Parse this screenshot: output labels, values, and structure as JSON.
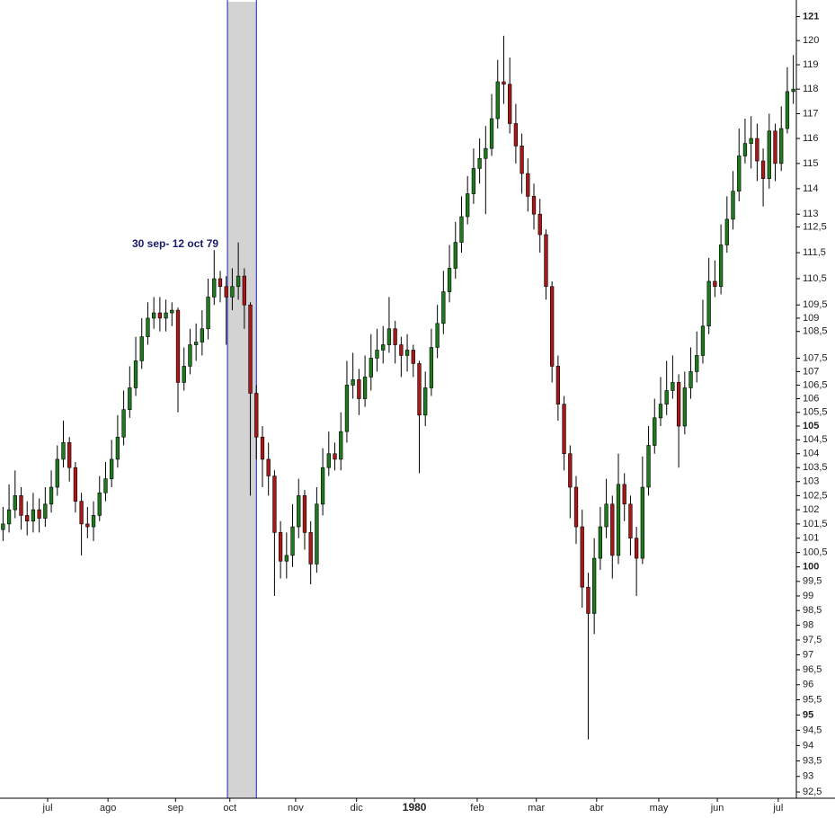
{
  "chart_data": {
    "type": "candlestick",
    "log_scale": true,
    "up_color": "#1f7a1f",
    "down_color": "#a81818",
    "wick_color": "#000000",
    "highlight": {
      "from": 37.2,
      "to": 42.0,
      "label": "30 sep- 12 oct 79",
      "fill": "#d3d3d3",
      "edge_color": "#1f1fb0",
      "label_color": "#1a1a6e"
    },
    "xlim": [
      -0.5,
      131.5
    ],
    "xticks": [
      {
        "value": 7.4,
        "label": "jul"
      },
      {
        "value": 17.4,
        "label": "ago"
      },
      {
        "value": 28.6,
        "label": "sep"
      },
      {
        "value": 37.6,
        "label": "oct"
      },
      {
        "value": 48.5,
        "label": "nov"
      },
      {
        "value": 58.6,
        "label": "dic"
      },
      {
        "value": 68.2,
        "label": "1980"
      },
      {
        "value": 78.6,
        "label": "feb"
      },
      {
        "value": 88.4,
        "label": "mar"
      },
      {
        "value": 98.4,
        "label": "abr"
      },
      {
        "value": 108.7,
        "label": "may"
      },
      {
        "value": 118.4,
        "label": "jun"
      },
      {
        "value": 128.5,
        "label": "jul"
      }
    ],
    "bold_xticks": [
      68.2
    ],
    "ylim": [
      92.3,
      121.7
    ],
    "yticks": [
      121,
      120,
      119,
      118,
      117,
      116,
      115,
      114,
      113,
      {
        "value": 112.5,
        "label": "112,5"
      },
      {
        "value": 111.5,
        "label": "111,5"
      },
      {
        "value": 110.5,
        "label": "110,5"
      },
      {
        "value": 109.5,
        "label": "109,5"
      },
      109,
      {
        "value": 108.5,
        "label": "108,5"
      },
      {
        "value": 107.5,
        "label": "107,5"
      },
      107,
      {
        "value": 106.5,
        "label": "106,5"
      },
      106,
      {
        "value": 105.5,
        "label": "105,5"
      },
      105,
      {
        "value": 104.5,
        "label": "104,5"
      },
      104,
      {
        "value": 103.5,
        "label": "103,5"
      },
      103,
      {
        "value": 102.5,
        "label": "102,5"
      },
      102,
      {
        "value": 101.5,
        "label": "101,5"
      },
      101,
      {
        "value": 100.5,
        "label": "100,5"
      },
      100,
      {
        "value": 99.5,
        "label": "99,5"
      },
      99,
      {
        "value": 98.5,
        "label": "98,5"
      },
      98,
      {
        "value": 97.5,
        "label": "97,5"
      },
      97,
      {
        "value": 96.5,
        "label": "96,5"
      },
      96,
      {
        "value": 95.5,
        "label": "95,5"
      },
      95,
      {
        "value": 94.5,
        "label": "94,5"
      },
      94,
      {
        "value": 93.5,
        "label": "93,5"
      },
      93,
      {
        "value": 92.5,
        "label": "92,5"
      }
    ],
    "bold_yticks": [
      121,
      105,
      100,
      95
    ],
    "open": [
      101.3,
      101.5,
      102,
      102.5,
      101.8,
      101.6,
      102,
      101.7,
      102.2,
      102.8,
      103.8,
      104.4,
      103.5,
      102.3,
      101.5,
      101.4,
      101.8,
      102.6,
      103.1,
      103.8,
      104.6,
      105.6,
      106.4,
      107.4,
      108.3,
      109,
      109.2,
      109,
      109.2,
      109.3,
      106.6,
      107.2,
      108,
      108.1,
      108.6,
      109.8,
      110.5,
      110.2,
      109.8,
      110.2,
      110.6,
      109.5,
      106.2,
      104.6,
      103.8,
      103.2,
      101.2,
      100.2,
      100.4,
      101.4,
      102.5,
      101.2,
      100.1,
      102.2,
      103.5,
      104,
      103.8,
      104.8,
      106.5,
      106.7,
      106,
      106.8,
      107.5,
      107.8,
      108,
      108.6,
      108,
      107.6,
      107.8,
      107.3,
      105.4,
      106.4,
      107.9,
      108.8,
      110,
      110.9,
      111.9,
      112.9,
      113.8,
      114.8,
      115.2,
      115.6,
      116.8,
      118.3,
      118.2,
      116.6,
      115.7,
      114.6,
      113.7,
      113,
      112.2,
      110.2,
      107.2,
      105.8,
      104,
      102.8,
      101.4,
      99.3,
      98.4,
      100.3,
      101.4,
      102.2,
      100.4,
      102.9,
      102.2,
      101,
      100.3,
      102.8,
      104.3,
      105.3,
      105.8,
      106.3,
      106.6,
      105,
      106.4,
      107,
      107.6,
      108.7,
      110.4,
      110.2,
      111.8,
      112.8,
      113.9,
      115.3,
      115.8,
      116,
      115.1,
      114.4,
      116.3,
      115,
      116.4,
      117.9
    ],
    "high": [
      102.1,
      102.9,
      103.4,
      102.8,
      102.3,
      102.6,
      102.4,
      102.8,
      103.4,
      104.3,
      105.2,
      104.6,
      103.7,
      102.6,
      102.1,
      102.3,
      103.2,
      103.7,
      104.5,
      105.4,
      106.3,
      107.2,
      108.3,
      109,
      109.6,
      109.8,
      109.8,
      109.7,
      109.6,
      109.4,
      107.9,
      108.6,
      108.8,
      109.3,
      110.5,
      111.6,
      110.8,
      110.6,
      110.9,
      111.9,
      110.9,
      109.6,
      106.5,
      105,
      104.4,
      103.4,
      101.6,
      101.2,
      102.2,
      103.1,
      102.7,
      101.6,
      102.8,
      104.2,
      104.8,
      104.4,
      105.5,
      107.4,
      107.7,
      107.1,
      107.6,
      108.4,
      108.6,
      108.7,
      109.8,
      108.9,
      108.3,
      108.4,
      108,
      107.4,
      107,
      108.6,
      109.5,
      110.8,
      111.8,
      112.7,
      113.7,
      114.5,
      115.6,
      116,
      116.5,
      117.8,
      119.2,
      120.2,
      119.3,
      117.4,
      116.2,
      115.2,
      114.2,
      113.6,
      112.4,
      110.4,
      107.6,
      106.1,
      104.3,
      103.2,
      102,
      99.8,
      101,
      102.1,
      103.1,
      102.5,
      104,
      103.3,
      102.5,
      101.4,
      103.9,
      105,
      106,
      106.8,
      107.4,
      107.6,
      106.9,
      107,
      107.9,
      108.5,
      109.7,
      111.3,
      111.2,
      112.6,
      113.7,
      114.7,
      116.4,
      116.8,
      116.9,
      116.6,
      115.6,
      117,
      116.6,
      117.3,
      118.9,
      119.4
    ],
    "low": [
      100.9,
      101.2,
      101.7,
      101.3,
      101.1,
      101.2,
      101.2,
      101.4,
      101.9,
      102.5,
      103.5,
      103,
      101.9,
      100.4,
      101,
      100.9,
      101.6,
      102.3,
      102.8,
      103.5,
      104.3,
      105.3,
      106.1,
      107.1,
      108,
      108.6,
      108.5,
      108.5,
      108.7,
      105.5,
      106.3,
      106.9,
      107.4,
      107.6,
      108.2,
      109.5,
      109.6,
      108,
      109.3,
      109.7,
      108.6,
      102.5,
      103.8,
      102.8,
      102.5,
      99,
      99.6,
      99.6,
      100,
      101,
      100.6,
      99.4,
      99.8,
      101.8,
      103.2,
      103.4,
      103.4,
      104.4,
      106,
      105.4,
      105.7,
      106.3,
      107,
      107.3,
      107.7,
      107.3,
      106.8,
      107,
      106.8,
      103.3,
      105,
      106.1,
      107.5,
      108.4,
      109.6,
      110.5,
      111.5,
      112.6,
      113.4,
      114.2,
      113,
      115.3,
      116.4,
      117.4,
      116.2,
      115,
      113.8,
      113.1,
      112.4,
      111.5,
      109.7,
      106.6,
      105.2,
      103.4,
      101.7,
      100.8,
      98.6,
      94.2,
      97.7,
      99.9,
      101,
      99.6,
      100.1,
      101.6,
      100.4,
      99,
      100.1,
      102.5,
      104,
      105,
      105.4,
      106,
      103.5,
      104.7,
      106,
      106.6,
      107.3,
      108.4,
      109.8,
      109.9,
      111.5,
      112.4,
      113.5,
      115,
      114.8,
      114.3,
      113.3,
      114,
      114.3,
      114.7,
      116.2,
      117.4
    ],
    "close": [
      101.5,
      102,
      102.5,
      101.8,
      101.6,
      102,
      101.7,
      102.2,
      102.8,
      103.8,
      104.4,
      103.5,
      102.3,
      101.5,
      101.4,
      101.8,
      102.6,
      103.1,
      103.8,
      104.6,
      105.6,
      106.4,
      107.4,
      108.3,
      109,
      109.2,
      109,
      109.2,
      109.3,
      106.6,
      107.2,
      108,
      108.1,
      108.6,
      109.8,
      110.5,
      110.2,
      109.8,
      110.2,
      110.6,
      109.5,
      106.2,
      104.6,
      103.8,
      103.2,
      101.2,
      100.2,
      100.4,
      101.4,
      102.5,
      101.2,
      100.1,
      102.2,
      103.5,
      104,
      103.8,
      104.8,
      106.5,
      106.7,
      106,
      106.8,
      107.5,
      107.8,
      108,
      108.6,
      108,
      107.6,
      107.8,
      107.3,
      105.4,
      106.4,
      107.9,
      108.8,
      110,
      110.9,
      111.9,
      112.9,
      113.8,
      114.8,
      115.2,
      115.6,
      116.8,
      118.3,
      118.2,
      116.6,
      115.7,
      114.6,
      113.7,
      113,
      112.2,
      110.2,
      107.2,
      105.8,
      104,
      102.8,
      101.4,
      99.3,
      98.4,
      100.3,
      101.4,
      102.2,
      100.4,
      102.9,
      102.2,
      101,
      100.3,
      102.8,
      104.3,
      105.3,
      105.8,
      106.3,
      106.6,
      105,
      106.4,
      107,
      107.6,
      108.7,
      110.4,
      110.2,
      111.8,
      112.8,
      113.9,
      115.3,
      115.8,
      116,
      115.1,
      114.4,
      116.3,
      115,
      116.4,
      117.9,
      118
    ]
  }
}
